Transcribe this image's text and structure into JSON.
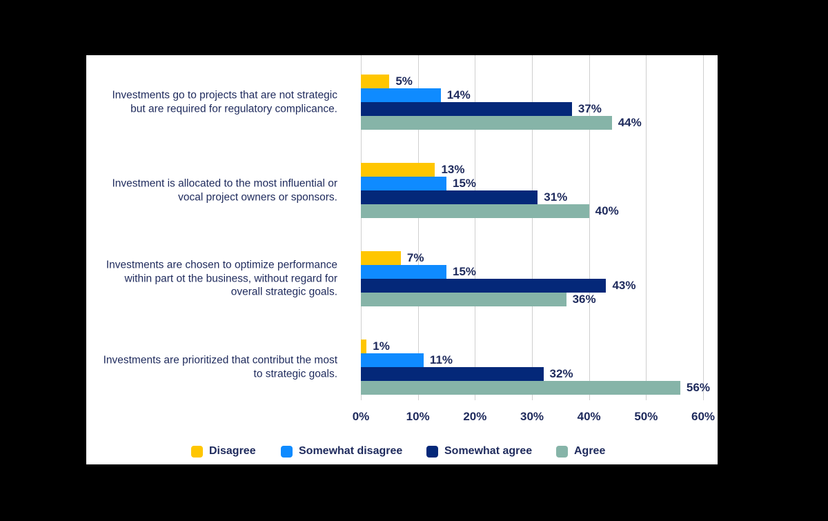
{
  "page": {
    "background_color": "#000000",
    "card_color": "#FFFFFF"
  },
  "chart_data": {
    "type": "bar",
    "orientation": "horizontal",
    "title": "",
    "categories": [
      "Investments go to projects that are not strategic but are required for regulatory complicance.",
      "Investment is allocated to the most influential or vocal project owners or sponsors.",
      "Investments are chosen to optimize performance within part ot the business, without regard for overall strategic goals.",
      "Investments are prioritized that contribut the most to strategic goals."
    ],
    "series": [
      {
        "name": "Disagree",
        "color": "#FFC600",
        "values": [
          5,
          13,
          7,
          1
        ]
      },
      {
        "name": "Somewhat disagree",
        "color": "#0F8BFF",
        "values": [
          14,
          15,
          15,
          11
        ]
      },
      {
        "name": "Somewhat agree",
        "color": "#042879",
        "values": [
          37,
          31,
          43,
          32
        ]
      },
      {
        "name": "Agree",
        "color": "#86B4A8",
        "values": [
          44,
          40,
          36,
          56
        ]
      }
    ],
    "data_labels": [
      [
        "5%",
        "14%",
        "37%",
        "44%"
      ],
      [
        "13%",
        "15%",
        "31%",
        "40%"
      ],
      [
        "7%",
        "15%",
        "43%",
        "36%"
      ],
      [
        "1%",
        "11%",
        "32%",
        "56%"
      ]
    ],
    "data_label_suffix": "%",
    "x_ticks": [
      "0%",
      "10%",
      "20%",
      "30%",
      "40%",
      "50%",
      "60%"
    ],
    "xlim": [
      0,
      60
    ],
    "grid": "vertical",
    "gridline_color": "#CFCFCF",
    "text_color": "#1E2A5C",
    "legend_position": "bottom"
  }
}
